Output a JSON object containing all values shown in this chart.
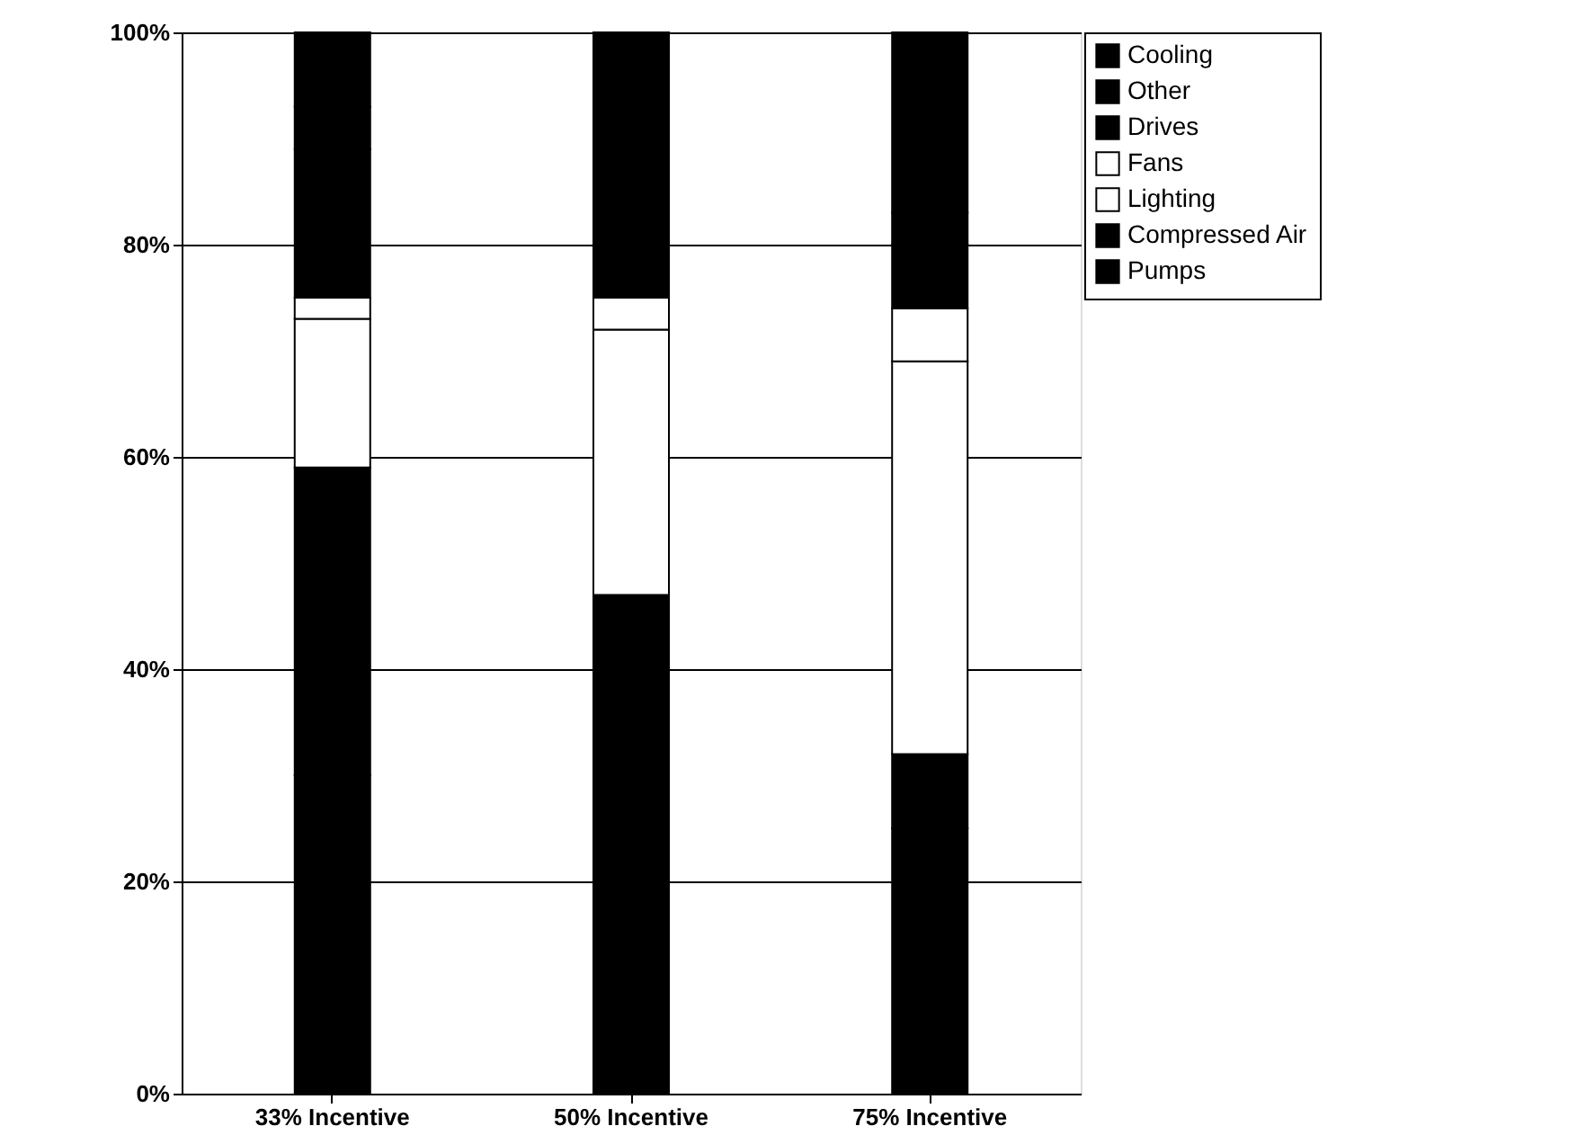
{
  "chart_data": {
    "type": "bar",
    "stacked": true,
    "categories": [
      "33% Incentive",
      "50% Incentive",
      "75% Incentive"
    ],
    "series": [
      {
        "name": "Pumps",
        "color": "#000000",
        "values": [
          30,
          30,
          25
        ]
      },
      {
        "name": "Compressed Air",
        "color": "#000000",
        "values": [
          29,
          17,
          7
        ]
      },
      {
        "name": "Lighting",
        "color": "#ffffff",
        "values": [
          14,
          25,
          37
        ]
      },
      {
        "name": "Fans",
        "color": "#ffffff",
        "values": [
          2,
          3,
          5
        ]
      },
      {
        "name": "Drives",
        "color": "#000000",
        "values": [
          14,
          11,
          6
        ]
      },
      {
        "name": "Other",
        "color": "#000000",
        "values": [
          4,
          3,
          3
        ]
      },
      {
        "name": "Cooling",
        "color": "#000000",
        "values": [
          7,
          11,
          17
        ]
      }
    ],
    "ylim": [
      0,
      100
    ],
    "yticks": [
      {
        "value": 0,
        "label": "0%"
      },
      {
        "value": 20,
        "label": "20%"
      },
      {
        "value": 40,
        "label": "40%"
      },
      {
        "value": 60,
        "label": "60%"
      },
      {
        "value": 80,
        "label": "80%"
      },
      {
        "value": 100,
        "label": "100%"
      }
    ],
    "grid": "y",
    "legend": "right"
  }
}
